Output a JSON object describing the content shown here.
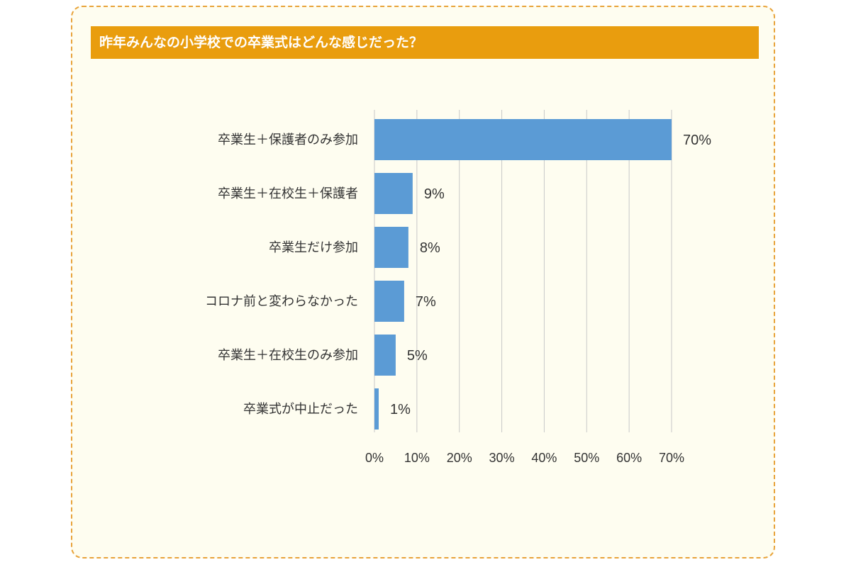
{
  "chart_data": {
    "type": "bar",
    "orientation": "horizontal",
    "title": "昨年みんなの小学校での卒業式はどんな感じだった？",
    "categories": [
      "卒業生＋保護者のみ参加",
      "卒業生＋在校生＋保護者",
      "卒業生だけ参加",
      "コロナ前と変わらなかった",
      "卒業生＋在校生のみ参加",
      "卒業式が中止だった"
    ],
    "values": [
      70,
      9,
      8,
      7,
      5,
      1
    ],
    "value_labels": [
      "70%",
      "9%",
      "8%",
      "7%",
      "5%",
      "1%"
    ],
    "xlim": [
      0,
      70
    ],
    "x_ticks": [
      0,
      10,
      20,
      30,
      40,
      50,
      60,
      70
    ],
    "x_tick_labels": [
      "0%",
      "10%",
      "20%",
      "30%",
      "40%",
      "50%",
      "60%",
      "70%"
    ],
    "grid": true,
    "legend": "none",
    "colors": {
      "bar": "#5b9bd5",
      "title_bg": "#e99d0e",
      "frame_border": "#e8a33a",
      "frame_bg": "#fefdf0",
      "grid": "#c8c8c8"
    }
  }
}
